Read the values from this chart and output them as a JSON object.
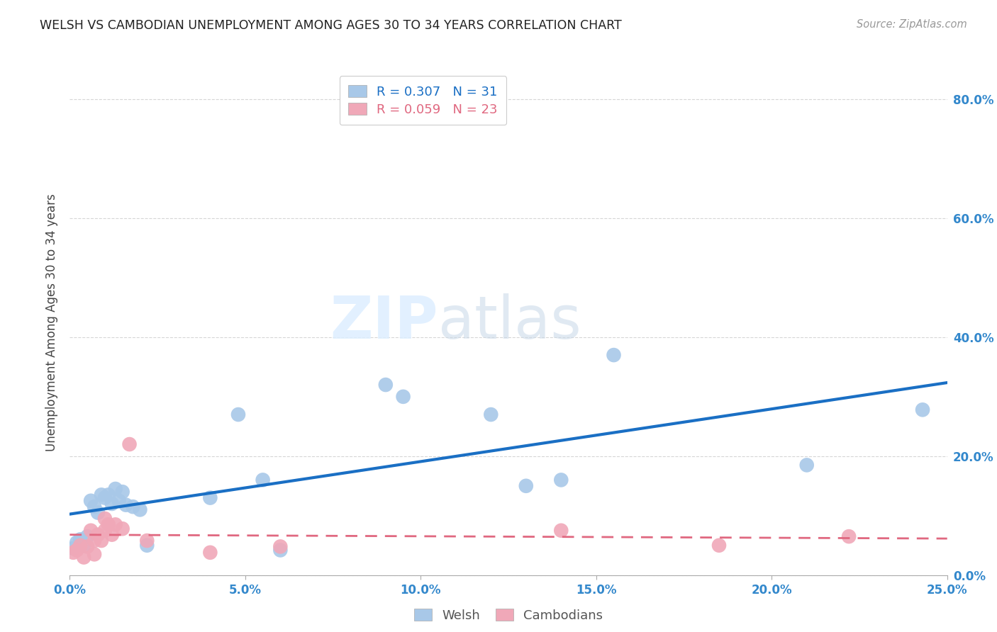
{
  "title": "WELSH VS CAMBODIAN UNEMPLOYMENT AMONG AGES 30 TO 34 YEARS CORRELATION CHART",
  "source": "Source: ZipAtlas.com",
  "ylabel": "Unemployment Among Ages 30 to 34 years",
  "xlabel": "",
  "watermark_zip": "ZIP",
  "watermark_atlas": "atlas",
  "xlim": [
    0.0,
    0.25
  ],
  "ylim": [
    0.0,
    0.85
  ],
  "xticks": [
    0.0,
    0.05,
    0.1,
    0.15,
    0.2,
    0.25
  ],
  "yticks": [
    0.0,
    0.2,
    0.4,
    0.6,
    0.8
  ],
  "background_color": "#ffffff",
  "grid_color": "#cccccc",
  "welsh_color": "#a8c8e8",
  "cambodian_color": "#f0a8b8",
  "welsh_line_color": "#1a6fc4",
  "cambodian_line_color": "#e06880",
  "welsh_R": 0.307,
  "welsh_N": 31,
  "cambodian_R": 0.059,
  "cambodian_N": 23,
  "welsh_x": [
    0.001,
    0.002,
    0.003,
    0.004,
    0.005,
    0.006,
    0.007,
    0.008,
    0.009,
    0.01,
    0.011,
    0.012,
    0.013,
    0.014,
    0.015,
    0.016,
    0.018,
    0.02,
    0.022,
    0.04,
    0.048,
    0.055,
    0.06,
    0.09,
    0.095,
    0.12,
    0.13,
    0.14,
    0.155,
    0.21,
    0.243
  ],
  "welsh_y": [
    0.045,
    0.055,
    0.06,
    0.05,
    0.065,
    0.125,
    0.115,
    0.105,
    0.135,
    0.13,
    0.135,
    0.12,
    0.145,
    0.125,
    0.14,
    0.118,
    0.115,
    0.11,
    0.05,
    0.13,
    0.27,
    0.16,
    0.042,
    0.32,
    0.3,
    0.27,
    0.15,
    0.16,
    0.37,
    0.185,
    0.278
  ],
  "cambodian_x": [
    0.001,
    0.002,
    0.003,
    0.004,
    0.005,
    0.006,
    0.007,
    0.007,
    0.008,
    0.009,
    0.01,
    0.01,
    0.011,
    0.012,
    0.013,
    0.015,
    0.017,
    0.022,
    0.04,
    0.06,
    0.14,
    0.185,
    0.222
  ],
  "cambodian_y": [
    0.038,
    0.042,
    0.05,
    0.03,
    0.048,
    0.075,
    0.058,
    0.035,
    0.068,
    0.058,
    0.075,
    0.095,
    0.085,
    0.068,
    0.085,
    0.078,
    0.22,
    0.058,
    0.038,
    0.048,
    0.075,
    0.05,
    0.065
  ],
  "legend_welsh_label": "Welsh",
  "legend_cambodian_label": "Cambodians"
}
